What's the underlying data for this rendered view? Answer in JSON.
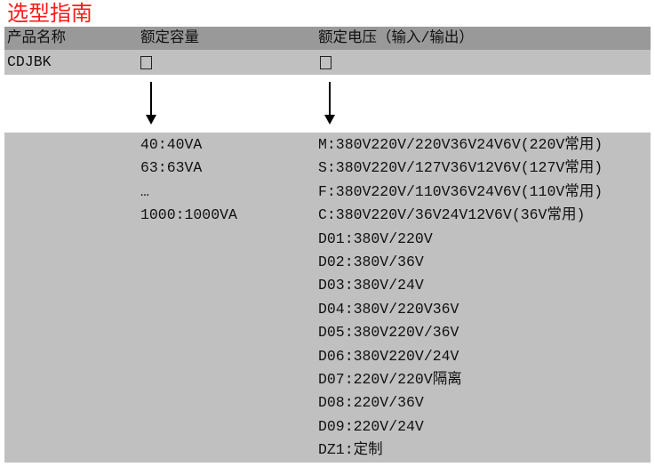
{
  "title": "选型指南",
  "header": {
    "col1": "产品名称",
    "col2": "额定容量",
    "col3": "额定电压（输入/输出）"
  },
  "row": {
    "product": "CDJBK",
    "capacity_placeholder": "□",
    "voltage_placeholder": "□"
  },
  "capacities": [
    "40:40VA",
    "63:63VA",
    "…",
    "1000:1000VA"
  ],
  "voltages": [
    "M:380V220V/220V36V24V6V(220V常用)",
    "S:380V220V/127V36V12V6V(127V常用)",
    "F:380V220V/110V36V24V6V(110V常用)",
    "C:380V220V/36V24V12V6V(36V常用)",
    "D01:380V/220V",
    "D02:380V/36V",
    "D03:380V/24V",
    "D04:380V/220V36V",
    "D05:380V220V/36V",
    "D06:380V220V/24V",
    "D07:220V/220V隔离",
    "D08:220V/36V",
    "D09:220V/24V",
    "DZ1:定制"
  ],
  "colors": {
    "title": "#ff1a1a",
    "header_bg": "#999999",
    "row_bg": "#c0c0c0"
  }
}
